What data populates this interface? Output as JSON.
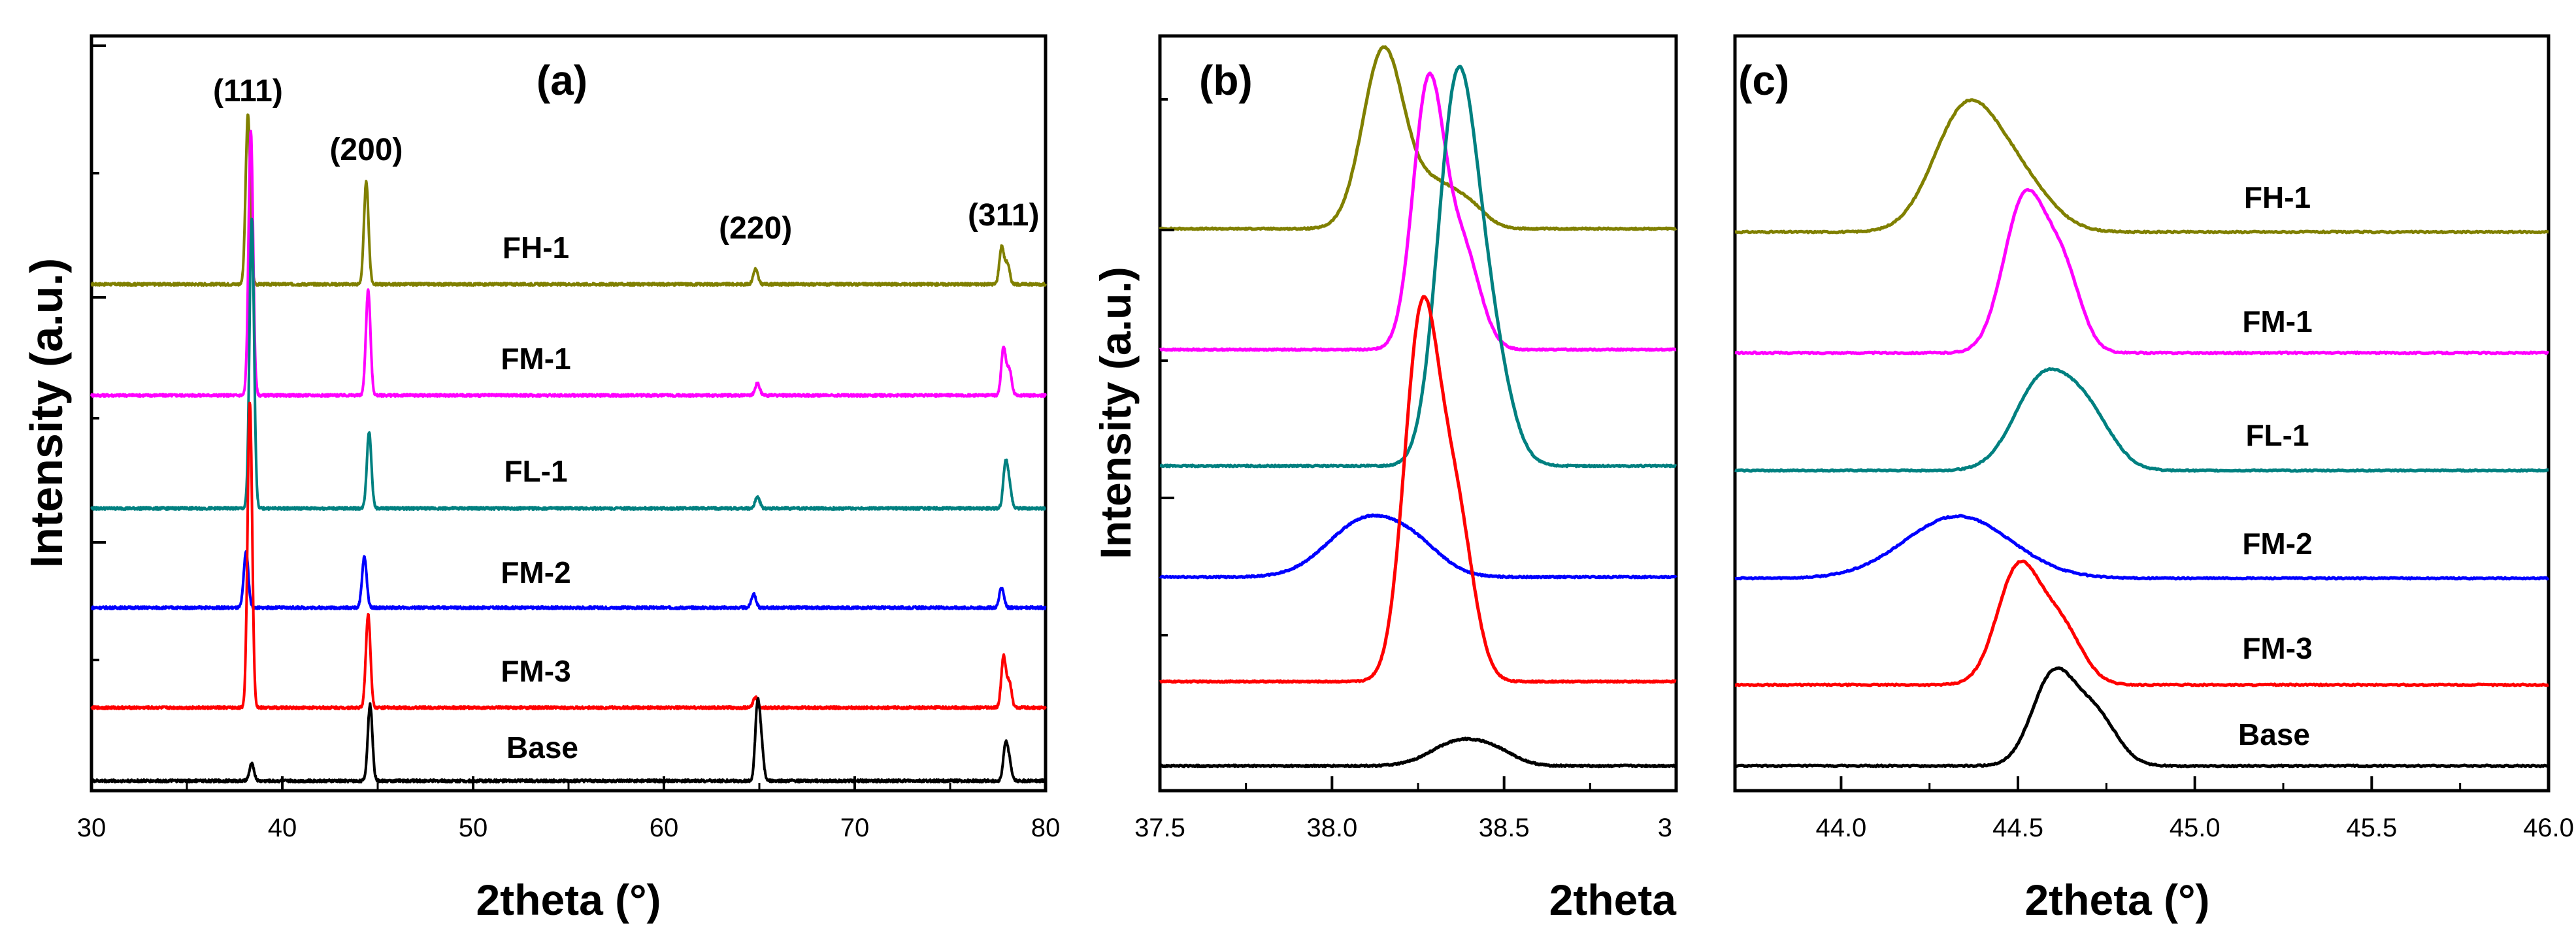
{
  "chart_data": [
    {
      "id": "a",
      "type": "line",
      "panel_label": "(a)",
      "xlabel": "2theta (°)",
      "ylabel": "Intensity (a.u.)",
      "xlim": [
        30,
        80
      ],
      "xticks": [
        "30",
        "40",
        "50",
        "60",
        "70",
        "80"
      ],
      "peak_annotations": [
        {
          "text": "(111)",
          "x": 38.2
        },
        {
          "text": "(200)",
          "x": 44.4
        },
        {
          "text": "(220)",
          "x": 64.8
        },
        {
          "text": "(311)",
          "x": 77.8
        }
      ],
      "series": [
        {
          "name": "FH-1",
          "color": "#808000",
          "offset": 5,
          "peaks": [
            [
              38.2,
              1.0
            ],
            [
              44.4,
              0.6
            ],
            [
              64.8,
              0.09
            ],
            [
              77.7,
              0.22
            ],
            [
              78.0,
              0.12
            ]
          ]
        },
        {
          "name": "FM-1",
          "color": "#ff00ff",
          "offset": 4,
          "peaks": [
            [
              38.35,
              1.55
            ],
            [
              44.5,
              0.62
            ],
            [
              64.9,
              0.07
            ],
            [
              77.8,
              0.28
            ],
            [
              78.1,
              0.15
            ]
          ]
        },
        {
          "name": "FL-1",
          "color": "#008080",
          "offset": 3,
          "peaks": [
            [
              38.4,
              1.7
            ],
            [
              44.55,
              0.45
            ],
            [
              64.9,
              0.07
            ],
            [
              77.9,
              0.25
            ],
            [
              78.1,
              0.12
            ]
          ]
        },
        {
          "name": "FM-2",
          "color": "#0000ff",
          "offset": 2,
          "peaks": [
            [
              38.1,
              0.33
            ],
            [
              44.3,
              0.3
            ],
            [
              64.7,
              0.08
            ],
            [
              77.7,
              0.12
            ]
          ]
        },
        {
          "name": "FM-3",
          "color": "#ff0000",
          "offset": 1,
          "peaks": [
            [
              38.3,
              1.8
            ],
            [
              44.5,
              0.55
            ],
            [
              64.8,
              0.06
            ],
            [
              77.8,
              0.3
            ],
            [
              78.1,
              0.15
            ]
          ]
        },
        {
          "name": "Base",
          "color": "#000000",
          "offset": 0,
          "peaks": [
            [
              38.4,
              0.1
            ],
            [
              44.6,
              0.45
            ],
            [
              64.9,
              0.42
            ],
            [
              65.1,
              0.2
            ],
            [
              77.9,
              0.2
            ],
            [
              78.1,
              0.1
            ]
          ]
        }
      ]
    },
    {
      "id": "b",
      "type": "line",
      "panel_label": "(b)",
      "xlabel": "2theta",
      "ylabel": "Intensity (a.u.)",
      "xlim": [
        37.5,
        39.0
      ],
      "xticks": [
        "37.5",
        "38.0",
        "38.5",
        "3"
      ],
      "series": [
        {
          "name": "FH-1",
          "color": "#808000",
          "offset": 5,
          "peaks": [
            [
              38.15,
              1.1,
              0.06
            ],
            [
              38.3,
              0.25,
              0.06
            ],
            [
              38.4,
              0.12,
              0.05
            ]
          ]
        },
        {
          "name": "FM-1",
          "color": "#ff00ff",
          "offset": 4,
          "peaks": [
            [
              38.28,
              1.6,
              0.045
            ],
            [
              38.38,
              0.6,
              0.05
            ]
          ]
        },
        {
          "name": "FL-1",
          "color": "#008080",
          "offset": 3,
          "peaks": [
            [
              38.36,
              2.15,
              0.055
            ],
            [
              38.45,
              0.8,
              0.06
            ]
          ]
        },
        {
          "name": "FM-2",
          "color": "#0000ff",
          "offset": 2,
          "peaks": [
            [
              38.1,
              0.35,
              0.11
            ],
            [
              38.25,
              0.12,
              0.08
            ]
          ]
        },
        {
          "name": "FM-3",
          "color": "#ff0000",
          "offset": 1,
          "peaks": [
            [
              38.26,
              2.2,
              0.05
            ],
            [
              38.36,
              1.0,
              0.05
            ]
          ]
        },
        {
          "name": "Base",
          "color": "#000000",
          "offset": 0,
          "peaks": [
            [
              38.37,
              0.15,
              0.08
            ],
            [
              38.48,
              0.06,
              0.06
            ]
          ]
        }
      ]
    },
    {
      "id": "c",
      "type": "line",
      "panel_label": "(c)",
      "xlabel": "2theta (°)",
      "xlim": [
        43.7,
        46.0
      ],
      "xticks": [
        "44.0",
        "44.5",
        "45.0",
        "45.5",
        "46.0"
      ],
      "series": [
        {
          "name": "FH-1",
          "color": "#808000",
          "offset": 5,
          "peaks": [
            [
              44.35,
              0.72,
              0.09
            ],
            [
              44.5,
              0.3,
              0.09
            ]
          ]
        },
        {
          "name": "FM-1",
          "color": "#ff00ff",
          "offset": 4,
          "peaks": [
            [
              44.52,
              0.95,
              0.06
            ],
            [
              44.63,
              0.45,
              0.05
            ]
          ]
        },
        {
          "name": "FL-1",
          "color": "#008080",
          "offset": 3,
          "peaks": [
            [
              44.57,
              0.55,
              0.08
            ],
            [
              44.7,
              0.3,
              0.07
            ]
          ]
        },
        {
          "name": "FM-2",
          "color": "#0000ff",
          "offset": 2,
          "peaks": [
            [
              44.33,
              0.38,
              0.15
            ]
          ]
        },
        {
          "name": "FM-3",
          "color": "#ff0000",
          "offset": 1,
          "peaks": [
            [
              44.5,
              0.7,
              0.06
            ],
            [
              44.62,
              0.35,
              0.06
            ]
          ]
        },
        {
          "name": "Base",
          "color": "#000000",
          "offset": 0,
          "peaks": [
            [
              44.6,
              0.55,
              0.06
            ],
            [
              44.72,
              0.3,
              0.06
            ]
          ]
        }
      ]
    }
  ]
}
